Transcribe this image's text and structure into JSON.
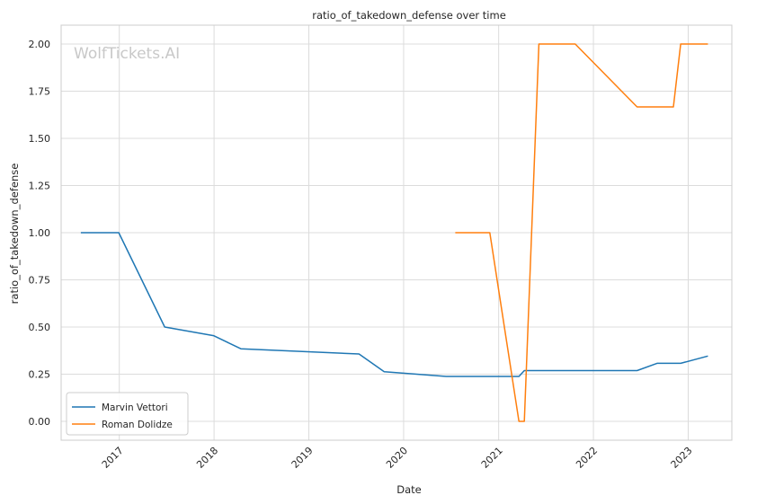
{
  "chart_data": {
    "type": "line",
    "title": "ratio_of_takedown_defense over time",
    "xlabel": "Date",
    "ylabel": "ratio_of_takedown_defense",
    "watermark": "WolfTickets.AI",
    "xlim": [
      "2016-05-22",
      "2023-06-18"
    ],
    "ylim": [
      -0.1,
      2.1
    ],
    "x_ticks": [
      "2017-01-01",
      "2018-01-01",
      "2019-01-01",
      "2020-01-01",
      "2021-01-01",
      "2022-01-01",
      "2023-01-01"
    ],
    "x_tick_labels": [
      "2017",
      "2018",
      "2019",
      "2020",
      "2021",
      "2022",
      "2023"
    ],
    "y_ticks": [
      0.0,
      0.25,
      0.5,
      0.75,
      1.0,
      1.25,
      1.5,
      1.75,
      2.0
    ],
    "y_tick_labels": [
      "0.00",
      "0.25",
      "0.50",
      "0.75",
      "1.00",
      "1.25",
      "1.50",
      "1.75",
      "2.00"
    ],
    "grid": true,
    "legend_position": "bottom-left",
    "series": [
      {
        "name": "Marvin Vettori",
        "color": "#1f77b4",
        "points": [
          {
            "x": "2016-08-06",
            "y": 1.0
          },
          {
            "x": "2016-12-30",
            "y": 1.0
          },
          {
            "x": "2017-06-25",
            "y": 0.5
          },
          {
            "x": "2017-12-30",
            "y": 0.4545
          },
          {
            "x": "2018-04-14",
            "y": 0.3846
          },
          {
            "x": "2019-07-13",
            "y": 0.3571
          },
          {
            "x": "2019-10-18",
            "y": 0.2632
          },
          {
            "x": "2020-06-13",
            "y": 0.2381
          },
          {
            "x": "2021-03-20",
            "y": 0.2381
          },
          {
            "x": "2021-04-10",
            "y": 0.2692
          },
          {
            "x": "2022-06-18",
            "y": 0.2692
          },
          {
            "x": "2022-09-03",
            "y": 0.3077
          },
          {
            "x": "2022-12-03",
            "y": 0.3077
          },
          {
            "x": "2023-03-18",
            "y": 0.3462
          }
        ]
      },
      {
        "name": "Roman Dolidze",
        "color": "#ff7f0e",
        "points": [
          {
            "x": "2020-07-18",
            "y": 1.0
          },
          {
            "x": "2020-11-28",
            "y": 1.0
          },
          {
            "x": "2021-03-20",
            "y": 0.0
          },
          {
            "x": "2021-04-10",
            "y": 0.0
          },
          {
            "x": "2021-06-05",
            "y": 2.0
          },
          {
            "x": "2021-10-23",
            "y": 2.0
          },
          {
            "x": "2022-06-18",
            "y": 1.6667
          },
          {
            "x": "2022-11-05",
            "y": 1.6667
          },
          {
            "x": "2022-12-03",
            "y": 2.0
          },
          {
            "x": "2023-03-18",
            "y": 2.0
          }
        ]
      }
    ]
  }
}
